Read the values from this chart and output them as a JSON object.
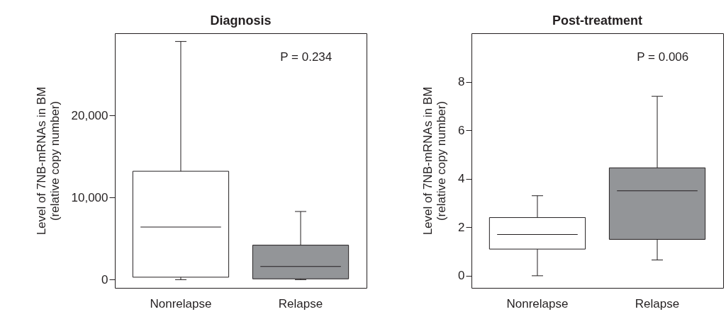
{
  "chart_data": [
    {
      "type": "box",
      "title": "Diagnosis",
      "ylabel": "Level of 7NB-mRNAs in BM\n(relative copy number)",
      "categories": [
        "Nonrelapse",
        "Relapse"
      ],
      "colors": [
        "#ffffff",
        "#939598"
      ],
      "boxes": [
        {
          "low": 0,
          "q1": 300,
          "median": 6400,
          "q3": 13200,
          "high": 29000
        },
        {
          "low": 0,
          "q1": 100,
          "median": 1600,
          "q3": 4200,
          "high": 8300
        }
      ],
      "ylim": [
        -1000,
        30000
      ],
      "yticks": [
        {
          "value": 0,
          "label": "0"
        },
        {
          "value": 10000,
          "label": "10,000"
        },
        {
          "value": 20000,
          "label": "20,000"
        }
      ],
      "grid": false,
      "annotations": [
        "P = 0.234"
      ]
    },
    {
      "type": "box",
      "title": "Post-treatment",
      "ylabel": "Level of 7NB-mRNAs in BM\n(relative copy number)",
      "categories": [
        "Nonrelapse",
        "Relapse"
      ],
      "colors": [
        "#ffffff",
        "#939598"
      ],
      "boxes": [
        {
          "low": 0,
          "q1": 1.1,
          "median": 1.7,
          "q3": 2.4,
          "high": 3.3
        },
        {
          "low": 0.65,
          "q1": 1.5,
          "median": 3.5,
          "q3": 4.45,
          "high": 7.4
        }
      ],
      "ylim": [
        -0.5,
        10
      ],
      "yticks": [
        0,
        2,
        4,
        6,
        8
      ],
      "grid": false,
      "annotations": [
        "P = 0.006"
      ]
    }
  ]
}
